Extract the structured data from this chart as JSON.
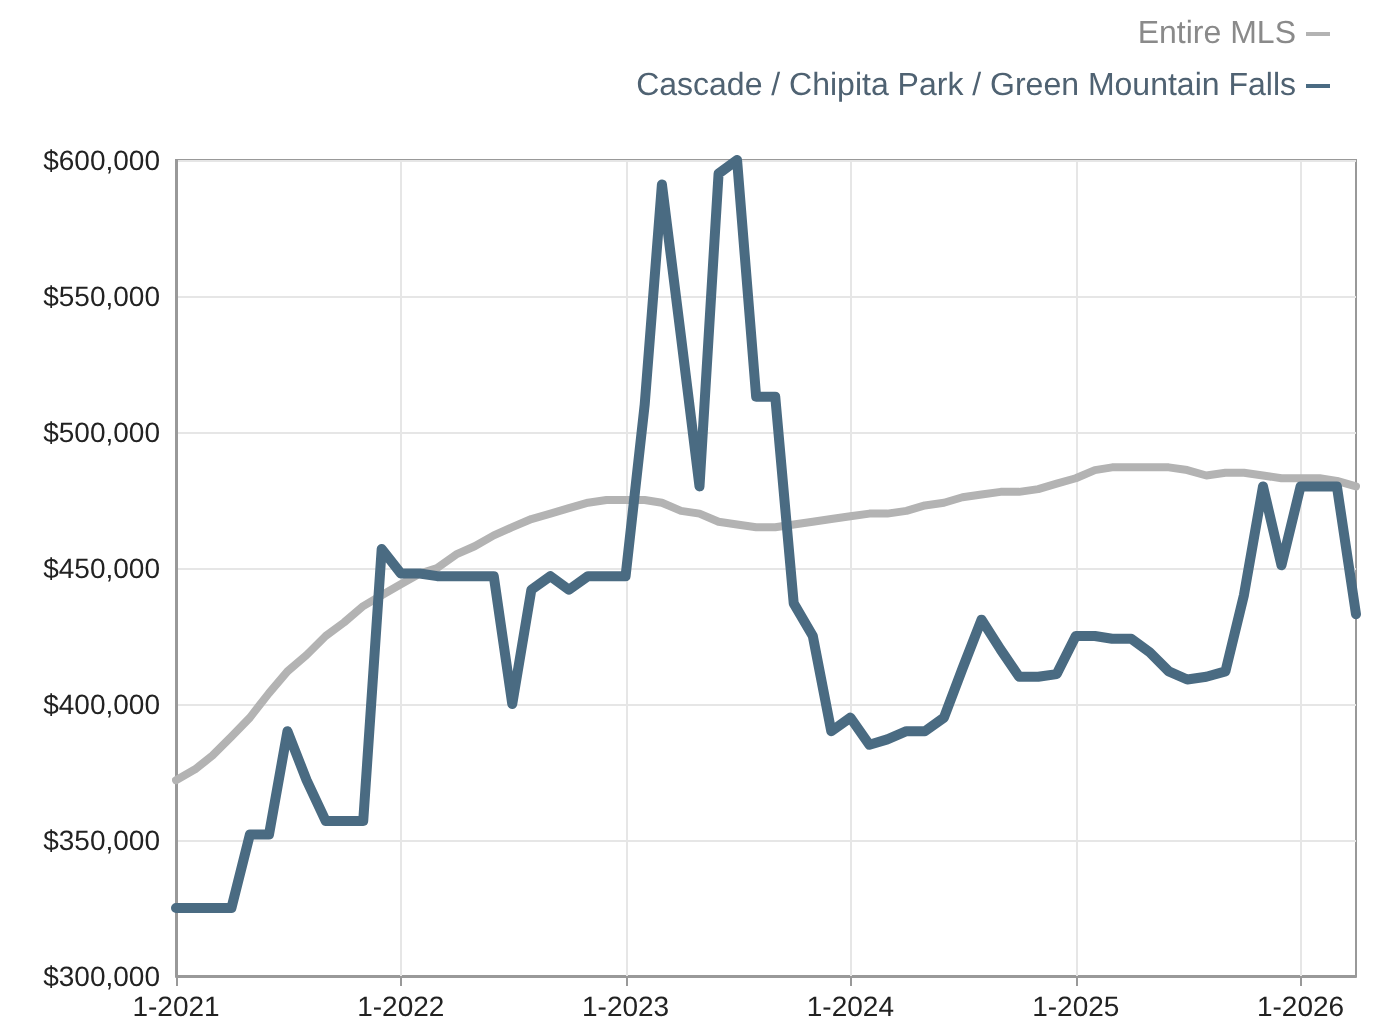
{
  "chart_data": {
    "type": "line",
    "x": [
      "2021-01",
      "2021-02",
      "2021-03",
      "2021-04",
      "2021-05",
      "2021-06",
      "2021-07",
      "2021-08",
      "2021-09",
      "2021-10",
      "2021-11",
      "2021-12",
      "2022-01",
      "2022-02",
      "2022-03",
      "2022-04",
      "2022-05",
      "2022-06",
      "2022-07",
      "2022-08",
      "2022-09",
      "2022-10",
      "2022-11",
      "2022-12",
      "2023-01",
      "2023-02",
      "2023-03",
      "2023-04",
      "2023-05",
      "2023-06",
      "2023-07",
      "2023-08",
      "2023-09",
      "2023-10",
      "2023-11",
      "2023-12",
      "2024-01",
      "2024-02",
      "2024-03",
      "2024-04",
      "2024-05",
      "2024-06",
      "2024-07",
      "2024-08",
      "2024-09",
      "2024-10",
      "2024-11",
      "2024-12",
      "2025-01",
      "2025-02",
      "2025-03",
      "2025-04",
      "2025-05",
      "2025-06",
      "2025-07",
      "2025-08",
      "2025-09",
      "2025-10",
      "2025-11",
      "2025-12",
      "2026-01",
      "2026-02",
      "2026-03",
      "2026-04"
    ],
    "series": [
      {
        "name": "Entire MLS",
        "color": "#b3b3b3",
        "values": [
          372000,
          376000,
          381000,
          388000,
          395000,
          404000,
          412000,
          418000,
          425000,
          430000,
          436000,
          440000,
          444000,
          448000,
          450000,
          455000,
          458000,
          462000,
          465000,
          468000,
          470000,
          472000,
          474000,
          475000,
          475000,
          475000,
          474000,
          471000,
          470000,
          467000,
          466000,
          465000,
          465000,
          466000,
          467000,
          468000,
          469000,
          470000,
          470000,
          471000,
          473000,
          474000,
          476000,
          477000,
          478000,
          478000,
          479000,
          481000,
          483000,
          486000,
          487000,
          487000,
          487000,
          487000,
          486000,
          484000,
          485000,
          485000,
          484000,
          483000,
          483000,
          483000,
          482000,
          480000
        ]
      },
      {
        "name": "Cascade / Chipita Park / Green Mountain Falls",
        "color": "#4a6b82",
        "values": [
          325000,
          325000,
          325000,
          325000,
          352000,
          352000,
          390000,
          372000,
          357000,
          357000,
          357000,
          457000,
          448000,
          448000,
          447000,
          447000,
          447000,
          447000,
          400000,
          442000,
          447000,
          442000,
          447000,
          447000,
          447000,
          510000,
          591000,
          535000,
          480000,
          595000,
          600000,
          513000,
          513000,
          437000,
          425000,
          390000,
          395000,
          385000,
          387000,
          390000,
          390000,
          395000,
          413000,
          431000,
          420000,
          410000,
          410000,
          411000,
          425000,
          425000,
          424000,
          424000,
          419000,
          412000,
          409000,
          410000,
          412000,
          440000,
          480000,
          451000,
          480000,
          480000,
          480000,
          433000
        ]
      }
    ],
    "xlim": [
      "2021-01",
      "2026-04"
    ],
    "xticks": [
      {
        "value": "2021-01",
        "label": "1-2021"
      },
      {
        "value": "2022-01",
        "label": "1-2022"
      },
      {
        "value": "2023-01",
        "label": "1-2023"
      },
      {
        "value": "2024-01",
        "label": "1-2024"
      },
      {
        "value": "2025-01",
        "label": "1-2025"
      },
      {
        "value": "2026-01",
        "label": "1-2026"
      }
    ],
    "ylim": [
      300000,
      600000
    ],
    "yticks": [
      {
        "value": 300000,
        "label": "$300,000"
      },
      {
        "value": 350000,
        "label": "$350,000"
      },
      {
        "value": 400000,
        "label": "$400,000"
      },
      {
        "value": 450000,
        "label": "$450,000"
      },
      {
        "value": 500000,
        "label": "$500,000"
      },
      {
        "value": 550000,
        "label": "$550,000"
      },
      {
        "value": 600000,
        "label": "$600,000"
      }
    ],
    "grid": true,
    "legend": "top right",
    "marker": "none",
    "line_style": "solid"
  }
}
